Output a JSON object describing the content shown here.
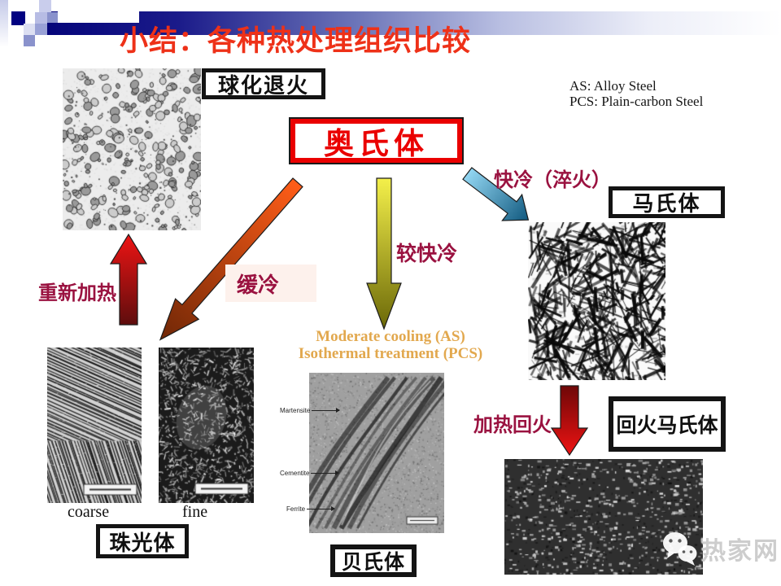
{
  "title": "小结：各种热处理组织比较",
  "legend": {
    "line1": "AS: Alloy Steel",
    "line2": "PCS: Plain-carbon Steel"
  },
  "nodes": {
    "spheroidizing_anneal": "球化退火",
    "austenite": "奥氏体",
    "martensite": "马氏体",
    "pearlite": "珠光体",
    "bainite": "贝氏体",
    "tempered_martensite": "回火马氏体"
  },
  "process_labels": {
    "quench": "快冷（淬火）",
    "moderate": "较快冷",
    "slow": "缓冷",
    "reheat": "重新加热",
    "temper": "加热回火"
  },
  "notes": {
    "moderate_line1": "Moderate cooling (AS)",
    "moderate_line2": "Isothermal treatment (PCS)"
  },
  "micrograph_captions": {
    "coarse": "coarse",
    "fine": "fine"
  },
  "bainite_annotations": {
    "top": "Martensite",
    "middle": "Cementite",
    "bottom": "Ferrite"
  },
  "watermark": {
    "text": "热家网"
  },
  "colors": {
    "title_red": "#ee3118",
    "process_label_red": "#9a1240",
    "austenite_red": "#ea0000",
    "note_tan": "#e2a84e",
    "bar_navy": "#05057a"
  }
}
